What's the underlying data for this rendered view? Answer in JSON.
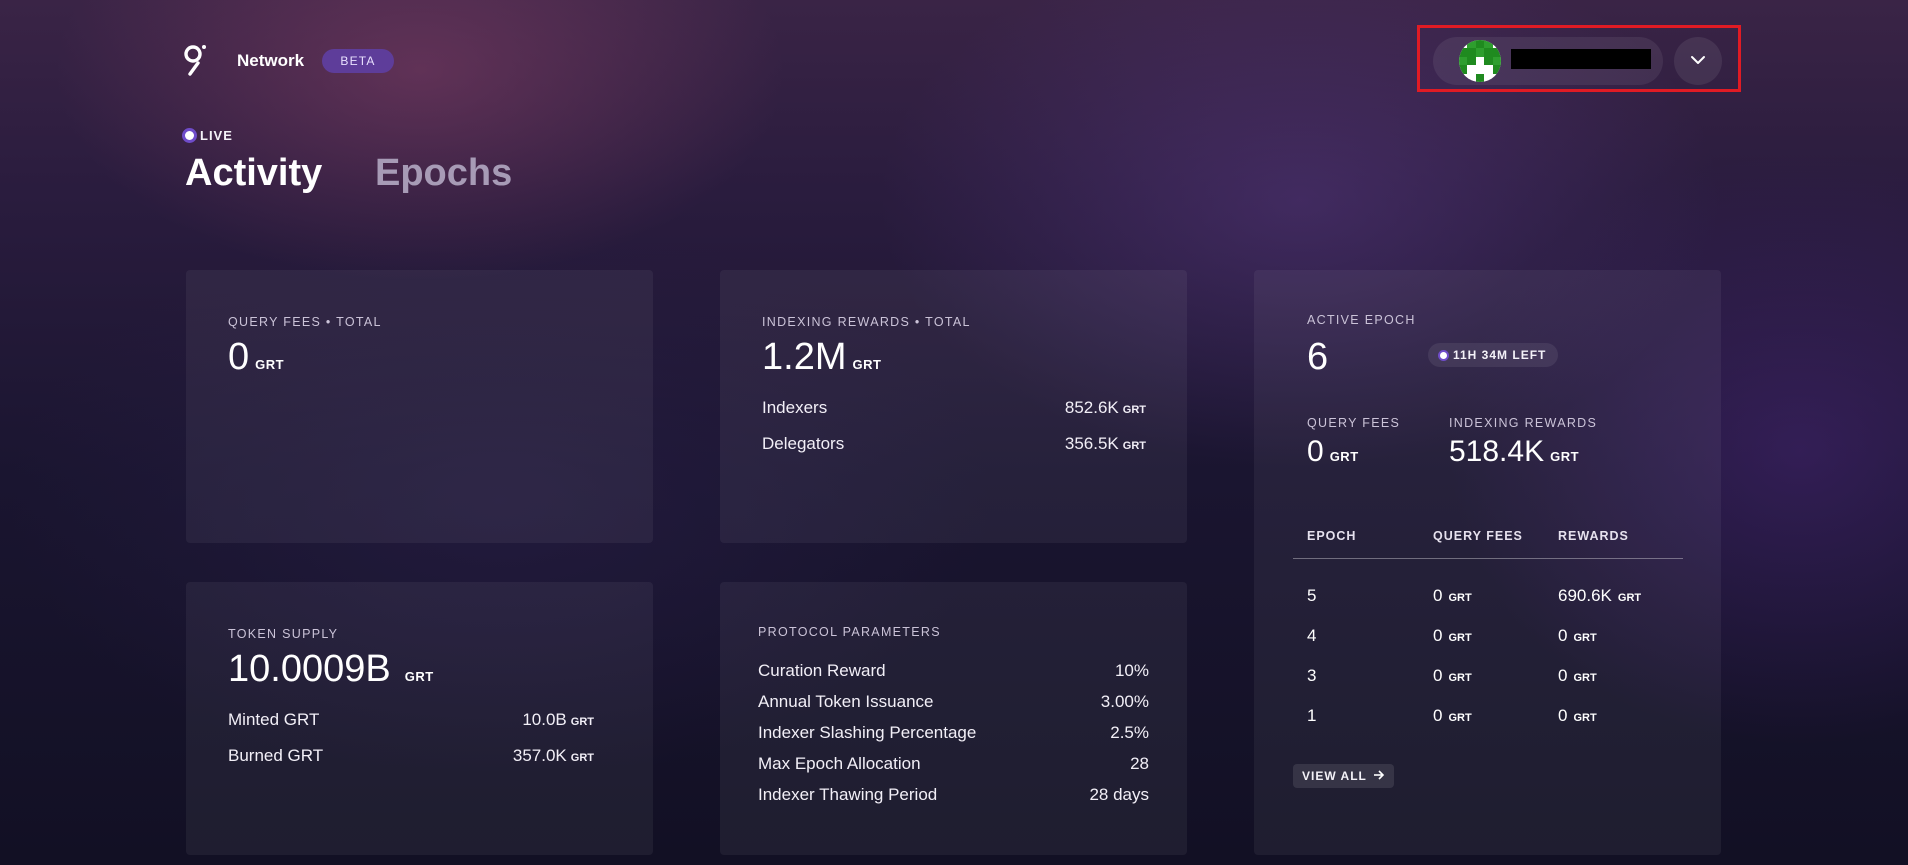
{
  "header": {
    "brand": "Network",
    "badge": "BETA",
    "avatar_colors": [
      "#1f8a1f",
      "#ffffff",
      "#2e9e2e"
    ]
  },
  "status": {
    "live_label": "LIVE"
  },
  "tabs": [
    {
      "label": "Activity",
      "active": true
    },
    {
      "label": "Epochs",
      "active": false
    }
  ],
  "query_fees": {
    "label": "QUERY FEES • TOTAL",
    "value": "0",
    "unit": "GRT"
  },
  "indexing_rewards": {
    "label": "INDEXING REWARDS • TOTAL",
    "value": "1.2M",
    "unit": "GRT",
    "rows": [
      {
        "label": "Indexers",
        "value": "852.6K",
        "unit": "GRT"
      },
      {
        "label": "Delegators",
        "value": "356.5K",
        "unit": "GRT"
      }
    ]
  },
  "token_supply": {
    "label": "TOKEN SUPPLY",
    "value": "10.0009B",
    "unit": "GRT",
    "rows": [
      {
        "label": "Minted GRT",
        "value": "10.0B",
        "unit": "GRT"
      },
      {
        "label": "Burned GRT",
        "value": "357.0K",
        "unit": "GRT"
      }
    ]
  },
  "protocol": {
    "label": "PROTOCOL PARAMETERS",
    "rows": [
      {
        "label": "Curation Reward",
        "value": "10%"
      },
      {
        "label": "Annual Token Issuance",
        "value": "3.00%"
      },
      {
        "label": "Indexer Slashing Percentage",
        "value": "2.5%"
      },
      {
        "label": "Max Epoch Allocation",
        "value": "28"
      },
      {
        "label": "Indexer Thawing Period",
        "value": "28 days"
      }
    ]
  },
  "active_epoch": {
    "label": "ACTIVE EPOCH",
    "value": "6",
    "time_left": "11H 34M LEFT",
    "query_fees_label": "QUERY FEES",
    "query_fees_value": "0",
    "rewards_label": "INDEXING REWARDS",
    "rewards_value": "518.4K",
    "unit": "GRT",
    "table": {
      "headers": [
        "EPOCH",
        "QUERY FEES",
        "REWARDS"
      ],
      "rows": [
        {
          "epoch": "5",
          "fees": "0",
          "rewards": "690.6K"
        },
        {
          "epoch": "4",
          "fees": "0",
          "rewards": "0"
        },
        {
          "epoch": "3",
          "fees": "0",
          "rewards": "0"
        },
        {
          "epoch": "1",
          "fees": "0",
          "rewards": "0"
        }
      ]
    },
    "view_all": "VIEW ALL"
  }
}
